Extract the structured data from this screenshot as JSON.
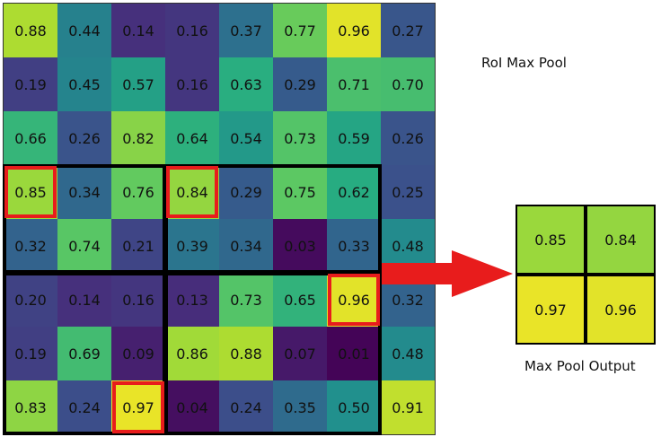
{
  "grid": {
    "values": [
      [
        "0.88",
        "0.44",
        "0.14",
        "0.16",
        "0.37",
        "0.77",
        "0.96",
        "0.27"
      ],
      [
        "0.19",
        "0.45",
        "0.57",
        "0.16",
        "0.63",
        "0.29",
        "0.71",
        "0.70"
      ],
      [
        "0.66",
        "0.26",
        "0.82",
        "0.64",
        "0.54",
        "0.73",
        "0.59",
        "0.26"
      ],
      [
        "0.85",
        "0.34",
        "0.76",
        "0.84",
        "0.29",
        "0.75",
        "0.62",
        "0.25"
      ],
      [
        "0.32",
        "0.74",
        "0.21",
        "0.39",
        "0.34",
        "0.03",
        "0.33",
        "0.48"
      ],
      [
        "0.20",
        "0.14",
        "0.16",
        "0.13",
        "0.73",
        "0.65",
        "0.96",
        "0.32"
      ],
      [
        "0.19",
        "0.69",
        "0.09",
        "0.86",
        "0.88",
        "0.07",
        "0.01",
        "0.48"
      ],
      [
        "0.83",
        "0.24",
        "0.97",
        "0.04",
        "0.24",
        "0.35",
        "0.50",
        "0.91"
      ]
    ]
  },
  "roi": {
    "title": "RoI Max Pool",
    "row_start": 3,
    "row_end": 7,
    "col_start": 0,
    "col_end": 6,
    "pool_rows": [
      [
        3,
        4
      ],
      [
        5,
        7
      ]
    ],
    "pool_cols": [
      [
        0,
        2
      ],
      [
        3,
        6
      ]
    ],
    "max_cells": [
      [
        3,
        0
      ],
      [
        3,
        3
      ],
      [
        7,
        2
      ],
      [
        5,
        6
      ]
    ],
    "border_color": "#000000",
    "highlight_color": "#e81c1c"
  },
  "output": {
    "title": "Max Pool Output",
    "values": [
      [
        "0.85",
        "0.84"
      ],
      [
        "0.97",
        "0.96"
      ]
    ]
  },
  "arrow_color": "#e81c1c"
}
